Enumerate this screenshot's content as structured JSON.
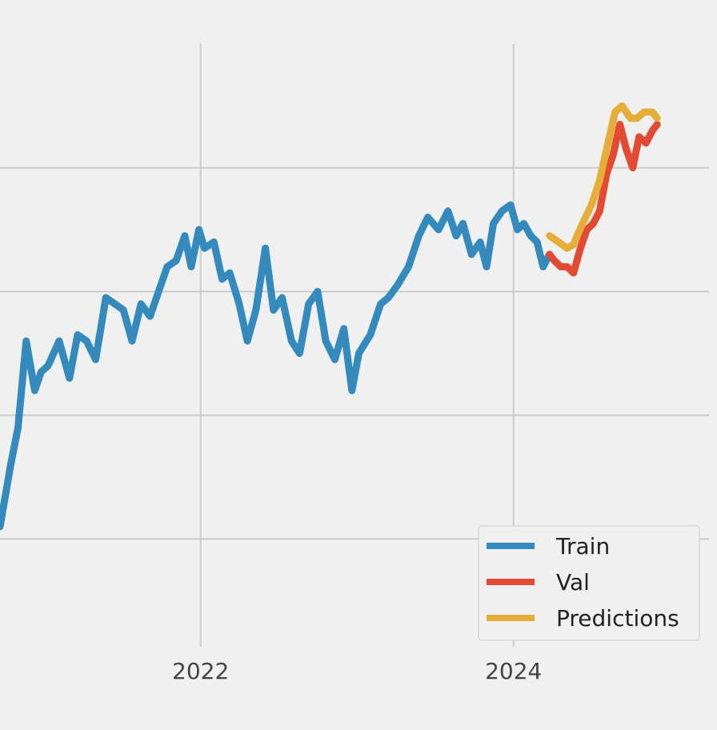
{
  "chart_data": {
    "type": "line",
    "title": "",
    "xlabel": "",
    "ylabel": "",
    "x_ticks": [
      "2022",
      "2024"
    ],
    "xlim": [
      "2020-09-20",
      "2025-04-01"
    ],
    "ylim": [
      0,
      5
    ],
    "y_gridlines": [
      1,
      2,
      3,
      4
    ],
    "y_ticks_visible": false,
    "grid": true,
    "legend": {
      "position": "lower-right",
      "entries": [
        {
          "name": "Train",
          "color": "#348abd"
        },
        {
          "name": "Val",
          "color": "#e24a33"
        },
        {
          "name": "Predictions",
          "color": "#e5ae38"
        }
      ]
    },
    "series": [
      {
        "name": "Train",
        "color": "#348abd",
        "x": [
          "2020-09-20",
          "2020-10-15",
          "2020-11-01",
          "2020-11-20",
          "2020-12-10",
          "2020-12-25",
          "2021-01-10",
          "2021-02-05",
          "2021-03-01",
          "2021-03-20",
          "2021-04-10",
          "2021-05-01",
          "2021-05-25",
          "2021-06-15",
          "2021-07-05",
          "2021-07-25",
          "2021-08-15",
          "2021-09-05",
          "2021-09-25",
          "2021-10-15",
          "2021-11-05",
          "2021-11-25",
          "2021-12-10",
          "2021-12-28",
          "2022-01-10",
          "2022-02-01",
          "2022-02-20",
          "2022-03-10",
          "2022-04-01",
          "2022-04-20",
          "2022-05-10",
          "2022-06-01",
          "2022-06-20",
          "2022-07-10",
          "2022-08-01",
          "2022-08-20",
          "2022-09-10",
          "2022-10-01",
          "2022-10-20",
          "2022-11-10",
          "2022-12-01",
          "2022-12-20",
          "2023-01-05",
          "2023-02-01",
          "2023-02-25",
          "2023-03-15",
          "2023-04-05",
          "2023-05-01",
          "2023-05-25",
          "2023-06-15",
          "2023-07-10",
          "2023-08-01",
          "2023-08-20",
          "2023-09-05",
          "2023-09-25",
          "2023-10-15",
          "2023-10-30",
          "2023-11-15",
          "2023-12-05",
          "2023-12-25",
          "2024-01-10",
          "2024-01-25",
          "2024-02-10",
          "2024-02-25",
          "2024-03-10",
          "2024-03-25"
        ],
        "y": [
          1.1,
          1.6,
          1.9,
          2.6,
          2.2,
          2.35,
          2.4,
          2.6,
          2.3,
          2.65,
          2.6,
          2.45,
          2.95,
          2.9,
          2.85,
          2.6,
          2.9,
          2.8,
          3.0,
          3.2,
          3.25,
          3.45,
          3.2,
          3.5,
          3.35,
          3.4,
          3.1,
          3.15,
          2.9,
          2.6,
          2.85,
          3.35,
          2.85,
          2.95,
          2.6,
          2.5,
          2.9,
          3.0,
          2.6,
          2.45,
          2.7,
          2.2,
          2.5,
          2.65,
          2.9,
          2.95,
          3.05,
          3.2,
          3.45,
          3.6,
          3.5,
          3.65,
          3.45,
          3.55,
          3.3,
          3.4,
          3.2,
          3.55,
          3.65,
          3.7,
          3.5,
          3.55,
          3.45,
          3.4,
          3.2,
          3.3
        ]
      },
      {
        "name": "Val",
        "color": "#e24a33",
        "x": [
          "2024-03-25",
          "2024-04-05",
          "2024-04-20",
          "2024-05-05",
          "2024-05-20",
          "2024-06-05",
          "2024-06-20",
          "2024-07-05",
          "2024-07-20",
          "2024-08-05",
          "2024-08-20",
          "2024-09-05",
          "2024-09-20",
          "2024-10-05",
          "2024-10-20",
          "2024-11-05",
          "2024-11-20",
          "2024-12-01"
        ],
        "y": [
          3.3,
          3.25,
          3.2,
          3.2,
          3.15,
          3.35,
          3.5,
          3.55,
          3.65,
          3.95,
          4.1,
          4.35,
          4.15,
          4.0,
          4.25,
          4.2,
          4.3,
          4.35
        ]
      },
      {
        "name": "Predictions",
        "color": "#e5ae38",
        "x": [
          "2024-03-25",
          "2024-04-15",
          "2024-05-05",
          "2024-05-20",
          "2024-06-10",
          "2024-07-01",
          "2024-07-20",
          "2024-08-05",
          "2024-08-25",
          "2024-09-10",
          "2024-09-30",
          "2024-10-15",
          "2024-11-01",
          "2024-11-20",
          "2024-12-01"
        ],
        "y": [
          3.45,
          3.4,
          3.35,
          3.38,
          3.55,
          3.7,
          3.9,
          4.15,
          4.45,
          4.5,
          4.4,
          4.4,
          4.45,
          4.45,
          4.4
        ]
      }
    ]
  }
}
